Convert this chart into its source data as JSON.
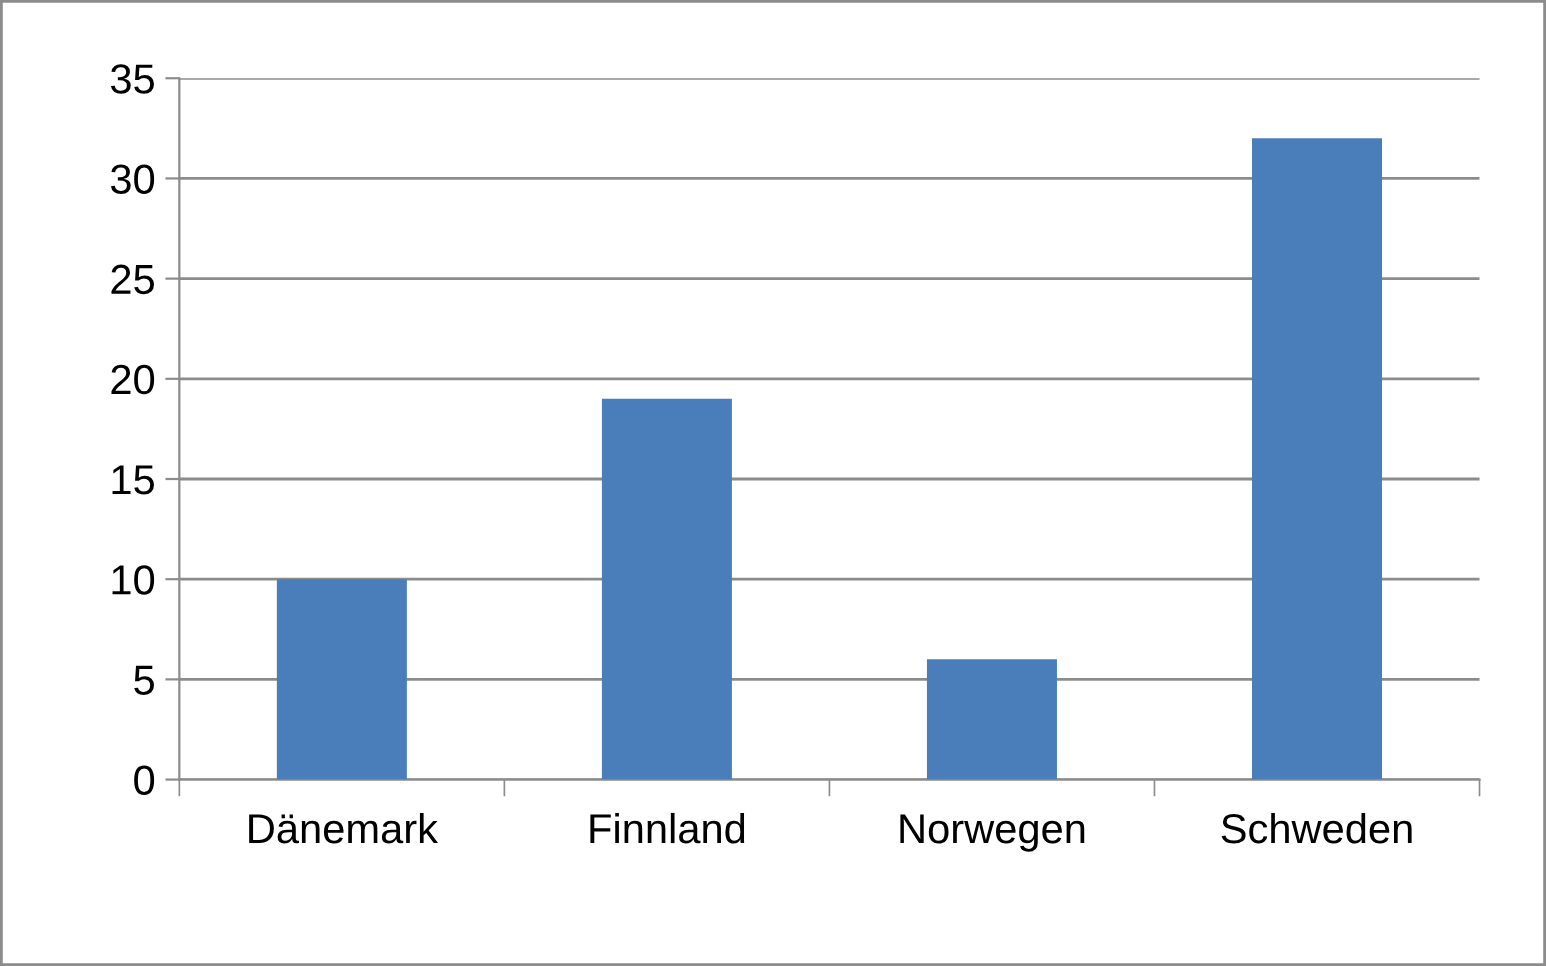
{
  "chart_data": {
    "type": "bar",
    "categories": [
      "Dänemark",
      "Finnland",
      "Norwegen",
      "Schweden"
    ],
    "values": [
      10,
      19,
      6,
      32
    ],
    "color": "#4a7ebb",
    "ylim": [
      0,
      35
    ],
    "yticks": [
      0,
      5,
      10,
      15,
      20,
      25,
      30,
      35
    ],
    "grid": "y"
  }
}
